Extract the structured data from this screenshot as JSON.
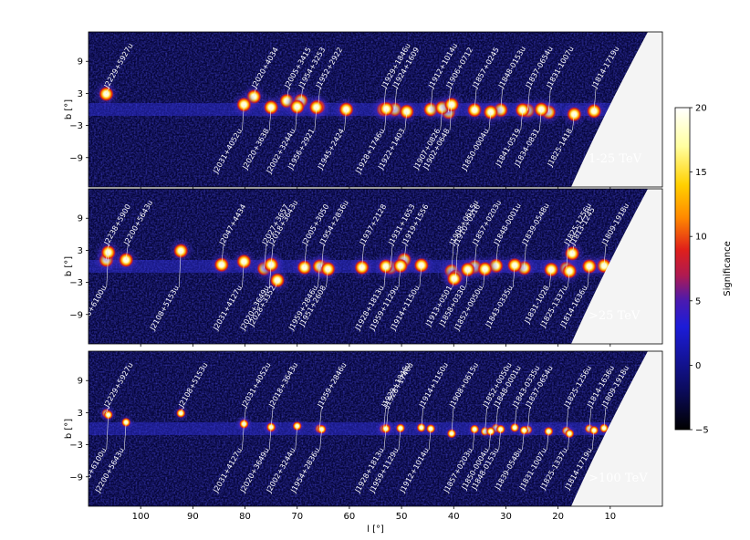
{
  "chart_data": {
    "type": "heatmap",
    "xlabel": "l [°]",
    "ylabel": "b [°]",
    "xlim": [
      110,
      0
    ],
    "ylim": [
      -14.5,
      14.5
    ],
    "x_ticks": [
      100,
      90,
      80,
      70,
      60,
      50,
      40,
      30,
      20,
      10
    ],
    "y_ticks": [
      9,
      3,
      -3,
      -9
    ],
    "colorbar": {
      "label": "Significance",
      "range": [
        -5,
        20
      ],
      "ticks": [
        20,
        15,
        10,
        5,
        0,
        -5
      ],
      "colors": [
        "#000000",
        "#0d0d6e",
        "#1a1ad6",
        "#5a1aa0",
        "#d41a1a",
        "#ff8c00",
        "#ffd700",
        "#ffffd0",
        "#ffffff"
      ]
    },
    "panels": [
      {
        "energy_label": "1-25 TeV",
        "sources": [
          {
            "name": "J2229+5927u",
            "l": 106.6,
            "b": 2.9
          },
          {
            "name": "J2020+4034",
            "l": 78.3,
            "b": 2.4
          },
          {
            "name": "J2005+3415",
            "l": 72.0,
            "b": 1.6
          },
          {
            "name": "J1954+3253",
            "l": 69.3,
            "b": 1.6
          },
          {
            "name": "J1952+2922",
            "l": 66.0,
            "b": 0.5
          },
          {
            "name": "J1929+1846u",
            "l": 53.4,
            "b": 0.0
          },
          {
            "name": "J1924+1609",
            "l": 51.3,
            "b": 0.0
          },
          {
            "name": "J1912+1014u",
            "l": 44.4,
            "b": 0.0
          },
          {
            "name": "J1906+0712",
            "l": 41.0,
            "b": -0.5
          },
          {
            "name": "J1857+0245",
            "l": 36.0,
            "b": -0.1
          },
          {
            "name": "J1848-0153u",
            "l": 31.0,
            "b": -0.1
          },
          {
            "name": "J1837-0654u",
            "l": 25.8,
            "b": -0.2
          },
          {
            "name": "J1831-1007u",
            "l": 21.8,
            "b": -0.5
          },
          {
            "name": "J1814-1719u",
            "l": 13.1,
            "b": -0.3
          },
          {
            "name": "J2031+4052u",
            "l": 80.2,
            "b": 0.9
          },
          {
            "name": "J2020+3638",
            "l": 75.0,
            "b": 0.4
          },
          {
            "name": "J2002+3244u",
            "l": 70.0,
            "b": 0.5
          },
          {
            "name": "J1956+2921",
            "l": 66.3,
            "b": 0.4
          },
          {
            "name": "J1945+2424",
            "l": 60.6,
            "b": 0.0
          },
          {
            "name": "J1928+1746u",
            "l": 52.9,
            "b": 0.1
          },
          {
            "name": "J1922+1403",
            "l": 49.0,
            "b": -0.4
          },
          {
            "name": "J1907+0826",
            "l": 42.2,
            "b": 0.3
          },
          {
            "name": "J1902+0648",
            "l": 40.4,
            "b": 0.9
          },
          {
            "name": "J1850-0004u",
            "l": 32.9,
            "b": -0.5
          },
          {
            "name": "J1841-0519",
            "l": 26.8,
            "b": -0.1
          },
          {
            "name": "J1834-0831",
            "l": 23.2,
            "b": 0.0
          },
          {
            "name": "J1825-1418",
            "l": 16.9,
            "b": -0.9
          }
        ]
      },
      {
        "energy_label": ">25 TeV",
        "sources": [
          {
            "name": "J2238+5900",
            "l": 106.6,
            "b": 1.2
          },
          {
            "name": "J2200+5643u",
            "l": 102.8,
            "b": 1.2
          },
          {
            "name": "J2047+4434",
            "l": 84.5,
            "b": 0.3
          },
          {
            "name": "J2027+3657",
            "l": 76.3,
            "b": -0.4
          },
          {
            "name": "J2018+3643u",
            "l": 75.0,
            "b": 0.2
          },
          {
            "name": "J2005+3050",
            "l": 68.6,
            "b": -0.2
          },
          {
            "name": "J1954+2836u",
            "l": 65.3,
            "b": -0.1
          },
          {
            "name": "J1937+2128",
            "l": 57.6,
            "b": -0.2
          },
          {
            "name": "J1931+1653",
            "l": 52.1,
            "b": -0.2
          },
          {
            "name": "J1919+1556",
            "l": 49.5,
            "b": 1.2
          },
          {
            "name": "J1908+0615u",
            "l": 40.4,
            "b": -0.9
          },
          {
            "name": "J1910+0516",
            "l": 39.6,
            "b": -1.9
          },
          {
            "name": "J1857+0203u",
            "l": 36.0,
            "b": -0.1
          },
          {
            "name": "J1848-0001u",
            "l": 31.9,
            "b": 0.1
          },
          {
            "name": "J1839-0548u",
            "l": 26.5,
            "b": -0.3
          },
          {
            "name": "J1825-1256u",
            "l": 18.4,
            "b": -0.4
          },
          {
            "name": "J1813-1245",
            "l": 17.3,
            "b": 2.4
          },
          {
            "name": "J1809-1918u",
            "l": 11.2,
            "b": 0.1
          },
          {
            "name": "J2228+6100u",
            "l": 106.2,
            "b": 2.6
          },
          {
            "name": "J2108+5153u",
            "l": 92.3,
            "b": 2.9
          },
          {
            "name": "J2031+4127u",
            "l": 80.2,
            "b": 0.9
          },
          {
            "name": "J2020+3649u",
            "l": 75.0,
            "b": 0.3
          },
          {
            "name": "J2028+3352",
            "l": 73.8,
            "b": -2.6
          },
          {
            "name": "J1959+2846u",
            "l": 65.7,
            "b": 0.0
          },
          {
            "name": "J1951+2608",
            "l": 64.1,
            "b": -0.5
          },
          {
            "name": "J1928+1813u",
            "l": 53.0,
            "b": 0.0
          },
          {
            "name": "J1959+1129u",
            "l": 50.2,
            "b": 0.1
          },
          {
            "name": "J1914+1150u",
            "l": 46.2,
            "b": 0.2
          },
          {
            "name": "J1913+0501",
            "l": 39.9,
            "b": -2.3
          },
          {
            "name": "J1858+0330",
            "l": 37.3,
            "b": -0.6
          },
          {
            "name": "J1852+0050u",
            "l": 34.0,
            "b": -0.5
          },
          {
            "name": "J1843-0335u",
            "l": 28.3,
            "b": 0.2
          },
          {
            "name": "J1831-1028",
            "l": 21.3,
            "b": -0.6
          },
          {
            "name": "J1825-1337u",
            "l": 17.8,
            "b": -0.9
          },
          {
            "name": "J1814-1636u",
            "l": 14.0,
            "b": 0.0
          }
        ]
      },
      {
        "energy_label": ">100 TeV",
        "sources": [
          {
            "name": "J2229+5927u",
            "l": 106.6,
            "b": 2.9
          },
          {
            "name": "J2108+5153u",
            "l": 92.3,
            "b": 2.9
          },
          {
            "name": "J2031+4052u",
            "l": 80.2,
            "b": 0.9
          },
          {
            "name": "J2018+3643u",
            "l": 75.0,
            "b": 0.2
          },
          {
            "name": "J1959+2846u",
            "l": 65.7,
            "b": 0.0
          },
          {
            "name": "J1929+1846u",
            "l": 53.4,
            "b": 0.0
          },
          {
            "name": "J1928+1746u",
            "l": 52.9,
            "b": 0.1
          },
          {
            "name": "J1914+1150u",
            "l": 46.2,
            "b": 0.2
          },
          {
            "name": "J1908+0615u",
            "l": 40.4,
            "b": -0.9
          },
          {
            "name": "J1852+0050u",
            "l": 34.0,
            "b": -0.5
          },
          {
            "name": "J1848-0001u",
            "l": 31.9,
            "b": 0.1
          },
          {
            "name": "J1843-0335u",
            "l": 28.3,
            "b": 0.2
          },
          {
            "name": "J1837-0654u",
            "l": 25.8,
            "b": -0.2
          },
          {
            "name": "J1825-1256u",
            "l": 18.4,
            "b": -0.4
          },
          {
            "name": "J1814-1636u",
            "l": 14.0,
            "b": 0.0
          },
          {
            "name": "J1809-1918u",
            "l": 11.2,
            "b": 0.1
          },
          {
            "name": "J2228+6100u",
            "l": 106.2,
            "b": 2.6
          },
          {
            "name": "J2200+5643u",
            "l": 102.8,
            "b": 1.2
          },
          {
            "name": "J2031+4127u",
            "l": 80.2,
            "b": 0.9
          },
          {
            "name": "J2020+3649u",
            "l": 75.0,
            "b": 0.3
          },
          {
            "name": "J2002+3244u",
            "l": 70.0,
            "b": 0.5
          },
          {
            "name": "J1954+2836u",
            "l": 65.3,
            "b": -0.1
          },
          {
            "name": "J1928+1813u",
            "l": 53.0,
            "b": 0.0
          },
          {
            "name": "J1959+1129u",
            "l": 50.2,
            "b": 0.1
          },
          {
            "name": "J1912+1014u",
            "l": 44.4,
            "b": 0.0
          },
          {
            "name": "J1857+0203u",
            "l": 36.0,
            "b": -0.1
          },
          {
            "name": "J1850-0004u",
            "l": 32.9,
            "b": -0.5
          },
          {
            "name": "J1848-0153u",
            "l": 31.0,
            "b": -0.1
          },
          {
            "name": "J1839-0548u",
            "l": 26.5,
            "b": -0.3
          },
          {
            "name": "J1831-1007u",
            "l": 21.8,
            "b": -0.5
          },
          {
            "name": "J1825-1337u",
            "l": 17.8,
            "b": -0.9
          },
          {
            "name": "J1814-1719u",
            "l": 13.1,
            "b": -0.3
          }
        ]
      }
    ]
  }
}
